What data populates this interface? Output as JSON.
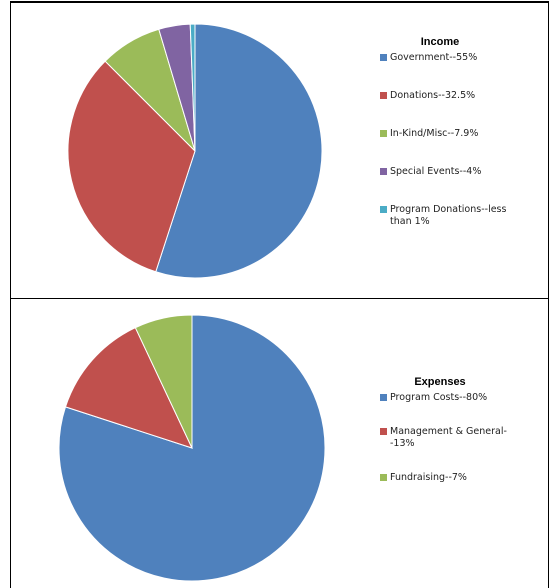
{
  "chart_data": [
    {
      "type": "pie",
      "title": "Income",
      "categories": [
        "Government--55%",
        "Donations--32.5%",
        "In-Kind/Misc--7.9%",
        "Special Events--4%",
        "Program Donations--less than 1%"
      ],
      "values": [
        55,
        32.5,
        7.9,
        4,
        0.6
      ],
      "colors": [
        "#4f81bd",
        "#c0504d",
        "#9bbb59",
        "#8064a2",
        "#4bacc6"
      ]
    },
    {
      "type": "pie",
      "title": "Expenses",
      "categories": [
        "Program Costs--80%",
        "Management & General--13%",
        "Fundraising--7%"
      ],
      "values": [
        80,
        13,
        7
      ],
      "colors": [
        "#4f81bd",
        "#c0504d",
        "#9bbb59"
      ]
    }
  ]
}
